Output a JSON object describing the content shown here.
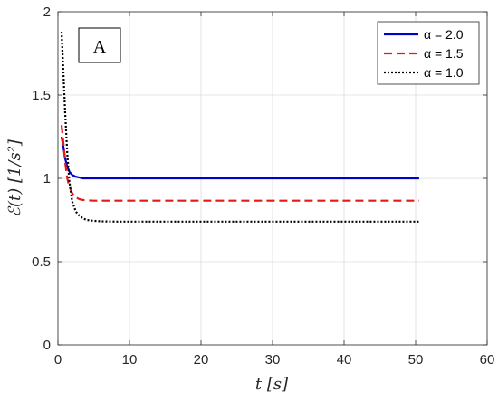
{
  "chart_data": {
    "type": "line",
    "panel_label": "A",
    "xlabel": "t [s]",
    "ylabel": "ℰ(t) [1/s²]",
    "xlim": [
      0,
      60
    ],
    "ylim": [
      0,
      2
    ],
    "xticks": [
      0,
      10,
      20,
      30,
      40,
      50,
      60
    ],
    "yticks": [
      0,
      0.5,
      1,
      1.5,
      2
    ],
    "xtick_labels": [
      "0",
      "10",
      "20",
      "30",
      "40",
      "50",
      "60"
    ],
    "ytick_labels": [
      "0",
      "0.5",
      "1",
      "1.5",
      "2"
    ],
    "grid": true,
    "legend_position": "top-right",
    "series": [
      {
        "name": "α = 2.0",
        "color": "#0000cc",
        "style": "solid",
        "x": [
          0.5,
          0.8,
          1.0,
          1.3,
          1.6,
          2.0,
          2.5,
          3.0,
          3.5,
          5,
          10,
          20,
          30,
          40,
          50.5
        ],
        "y": [
          1.25,
          1.18,
          1.12,
          1.07,
          1.04,
          1.02,
          1.01,
          1.005,
          1.0,
          1.0,
          1.0,
          1.0,
          1.0,
          1.0,
          1.0
        ]
      },
      {
        "name": "α = 1.5",
        "color": "#e31a1c",
        "style": "dashed",
        "x": [
          0.5,
          0.8,
          1.0,
          1.3,
          1.6,
          2.0,
          2.5,
          3.0,
          3.5,
          4,
          5,
          10,
          20,
          30,
          40,
          50.5
        ],
        "y": [
          1.32,
          1.2,
          1.1,
          1.0,
          0.95,
          0.91,
          0.885,
          0.875,
          0.87,
          0.868,
          0.866,
          0.866,
          0.866,
          0.866,
          0.866,
          0.866
        ]
      },
      {
        "name": "α = 1.0",
        "color": "#000000",
        "style": "dotted",
        "x": [
          0.5,
          0.7,
          1.0,
          1.3,
          1.6,
          2.0,
          2.5,
          3.0,
          3.5,
          4,
          5,
          6,
          8,
          10,
          20,
          30,
          40,
          50.5
        ],
        "y": [
          1.88,
          1.7,
          1.4,
          1.15,
          0.98,
          0.86,
          0.8,
          0.775,
          0.76,
          0.75,
          0.745,
          0.742,
          0.74,
          0.74,
          0.74,
          0.74,
          0.74,
          0.74
        ]
      }
    ]
  }
}
